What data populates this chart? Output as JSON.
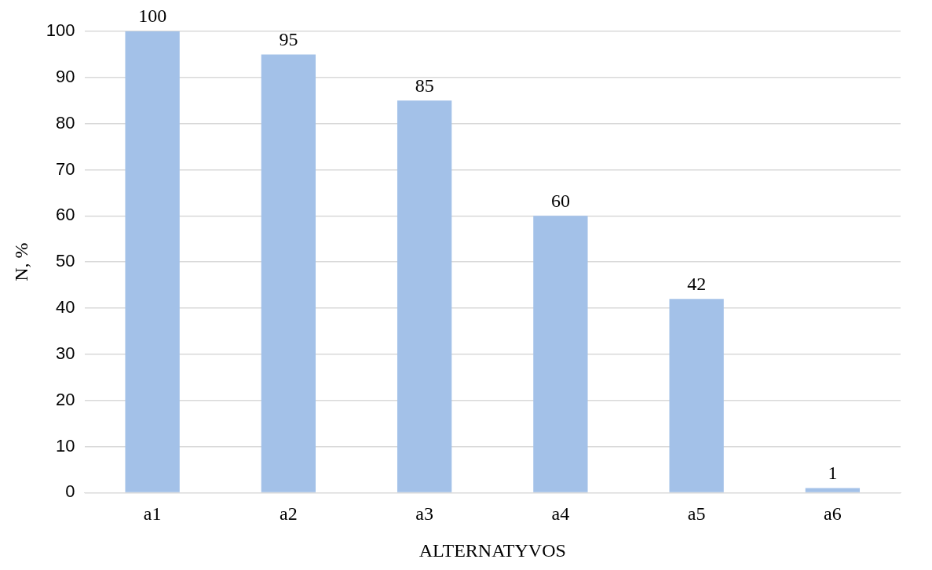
{
  "chart_data": {
    "type": "bar",
    "xlabel": "ALTERNATYVOS",
    "ylabel": "N, %",
    "categories": [
      "a1",
      "a2",
      "a3",
      "a4",
      "a5",
      "a6"
    ],
    "values": [
      100,
      95,
      85,
      60,
      42,
      1
    ],
    "color": "#a3c1e8",
    "ylim": [
      0,
      100
    ],
    "yticks": [
      0,
      10,
      20,
      30,
      40,
      50,
      60,
      70,
      80,
      90,
      100
    ],
    "grid": "y",
    "legend": false,
    "data_labels": true
  }
}
